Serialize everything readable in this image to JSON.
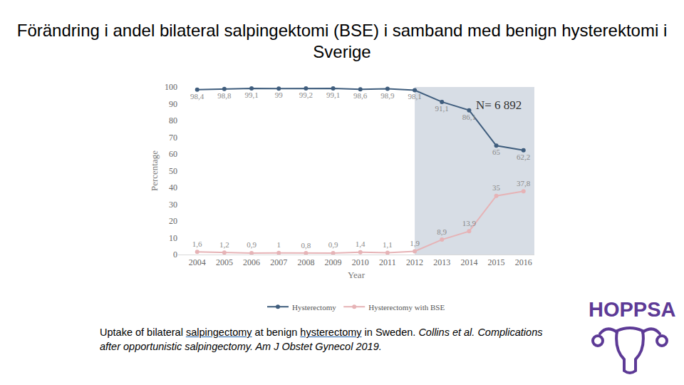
{
  "title": "Förändring i andel bilateral salpingektomi (BSE) i samband med benign hysterektomi i Sverige",
  "chart_data": {
    "type": "line",
    "x_label": "Year",
    "y_label": "Percentage",
    "x": [
      2004,
      2005,
      2006,
      2007,
      2008,
      2009,
      2010,
      2011,
      2012,
      2013,
      2014,
      2015,
      2016
    ],
    "xlim": [
      2003.3,
      2016.4
    ],
    "xticks": [
      2004,
      2005,
      2006,
      2007,
      2008,
      2009,
      2010,
      2011,
      2012,
      2013,
      2014,
      2015,
      2016
    ],
    "ylim": [
      0,
      100
    ],
    "yticks": [
      0,
      10,
      20,
      30,
      40,
      50,
      60,
      70,
      80,
      90,
      100
    ],
    "grid": false,
    "legend": "bottom",
    "data_labels": true,
    "shaded_from": 2012,
    "annotations": [
      {
        "text": "N= 6 892"
      }
    ],
    "series": [
      {
        "name": "Hysterectomy",
        "color": "#3f5d7d",
        "marker": "circle",
        "values": [
          98.4,
          98.8,
          99.1,
          99,
          99.2,
          99.1,
          98.6,
          98.9,
          98.1,
          91.1,
          86.1,
          65,
          62.2
        ],
        "value_labels": [
          "98,4",
          "98,8",
          "99,1",
          "99",
          "99,2",
          "99,1",
          "98,6",
          "98,9",
          "98,1",
          "91,1",
          "86,1",
          "65",
          "62,2"
        ]
      },
      {
        "name": "Hysterectomy with BSE",
        "color": "#e6b3b6",
        "marker": "circle",
        "values": [
          1.6,
          1.2,
          0.9,
          1,
          0.8,
          0.9,
          1.4,
          1.1,
          1.9,
          8.9,
          13.9,
          35,
          37.8
        ],
        "value_labels": [
          "1,6",
          "1,2",
          "0,9",
          "1",
          "0,8",
          "0,9",
          "1,4",
          "1,1",
          "1,9",
          "8,9",
          "13,9",
          "35",
          "37,8"
        ]
      }
    ]
  },
  "caption": [
    {
      "text": "Uptake of bilateral "
    },
    {
      "text": "salpingectomy",
      "style": "link"
    },
    {
      "text": " at benign "
    },
    {
      "text": "hysterectomy",
      "style": "link"
    },
    {
      "text": " in Sweden. "
    },
    {
      "text": "Collins et al. Complications after opportunistic salpingectomy. Am J Obstet Gynecol 2019.",
      "style": "italic"
    }
  ],
  "logo": {
    "text": "HOPPSA"
  }
}
